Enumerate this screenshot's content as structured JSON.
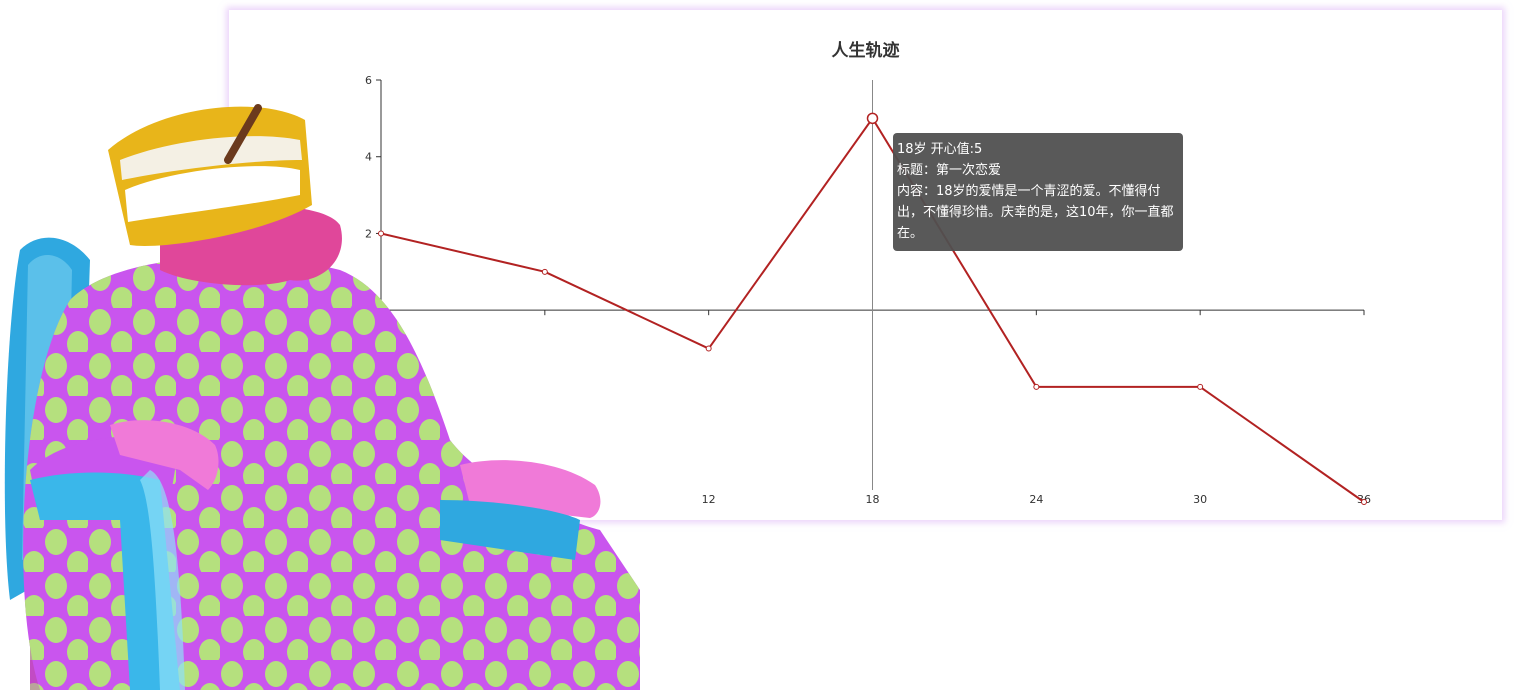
{
  "chart_data": {
    "type": "line",
    "title": "人生轨迹",
    "xlabel": "",
    "ylabel": "",
    "x_ticks": [
      12,
      18,
      24,
      30,
      36
    ],
    "y_ticks": [
      0,
      2,
      4,
      6
    ],
    "xlim": [
      0,
      36
    ],
    "ylim": [
      -5,
      6
    ],
    "grid": false,
    "series": [
      {
        "color": "#b22222",
        "x": [
          0,
          6,
          12,
          18,
          24,
          30,
          36
        ],
        "y": [
          2,
          1,
          -1,
          5,
          -2,
          -2,
          -5
        ]
      }
    ],
    "tooltip": {
      "header": "18岁 开心值:5",
      "title_line": "标题：第一次恋爱",
      "content_line": "内容：18岁的爱情是一个青涩的爱。不懂得付出，不懂得珍惜。庆幸的是，这10年，你一直都在。"
    }
  }
}
